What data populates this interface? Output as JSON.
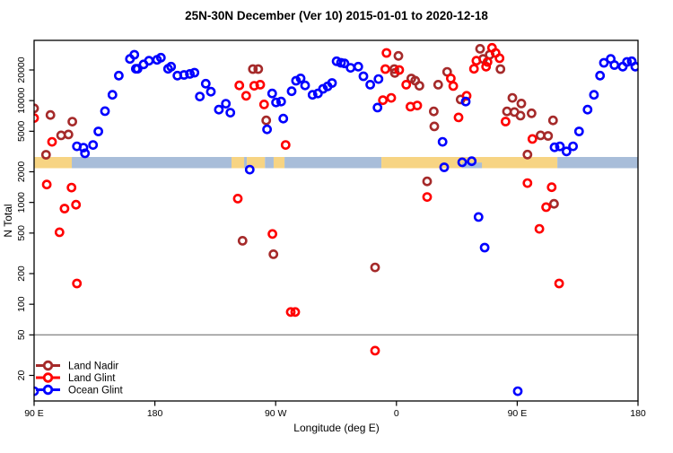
{
  "title": "25N-30N December (Ver 10)   2015-01-01 to 2020-12-18",
  "chart_data": {
    "type": "scatter",
    "xlabel": "Longitude (deg E)",
    "ylabel": "N Total",
    "y_scale": "log10",
    "x_range_deg": [
      90,
      540
    ],
    "y_range": [
      12,
      39000
    ],
    "reference_line_y": 50,
    "x_axis": {
      "ticks": [
        {
          "lon": 90,
          "label": "90 E"
        },
        {
          "lon": 180,
          "label": "180"
        },
        {
          "lon": 270,
          "label": "90 W"
        },
        {
          "lon": 360,
          "label": "0"
        },
        {
          "lon": 450,
          "label": "90 E"
        },
        {
          "lon": 540,
          "label": "180"
        }
      ]
    },
    "y_axis": {
      "ticks": [
        20,
        50,
        100,
        200,
        500,
        1000,
        2000,
        5000,
        10000,
        20000
      ]
    },
    "map_strip": {
      "description": "land/ocean band drawn across plot at N ~2200-2800",
      "band_center_n": 2450,
      "land_color": "#F7D483",
      "ocean_color": "#A8BDD9",
      "segments": [
        {
          "from": 90,
          "to": 118.1,
          "type": "land"
        },
        {
          "from": 118.1,
          "to": 237.1,
          "type": "ocean"
        },
        {
          "from": 237.1,
          "to": 246.5,
          "type": "land"
        },
        {
          "from": 246.5,
          "to": 248.5,
          "type": "ocean"
        },
        {
          "from": 248.5,
          "to": 262.0,
          "type": "land"
        },
        {
          "from": 262.0,
          "to": 268.5,
          "type": "ocean"
        },
        {
          "from": 268.5,
          "to": 276.6,
          "type": "land"
        },
        {
          "from": 276.6,
          "to": 348.8,
          "type": "ocean"
        },
        {
          "from": 348.8,
          "to": 479.9,
          "type": "land"
        },
        {
          "from": 479.9,
          "to": 540.0,
          "type": "ocean"
        }
      ],
      "gulf_overlay": {
        "from": 409,
        "to": 423.7,
        "type": "ocean"
      }
    },
    "series": [
      {
        "name": "Land Nadir",
        "color": "#A52A2A",
        "points": [
          [
            90,
            8400
          ],
          [
            102.2,
            7220
          ],
          [
            118.5,
            6220
          ],
          [
            110.1,
            4560
          ],
          [
            115.6,
            4650
          ],
          [
            98.9,
            2940
          ],
          [
            253,
            20400
          ],
          [
            257,
            20400
          ],
          [
            263,
            6400
          ],
          [
            245.3,
            420
          ],
          [
            268.3,
            310
          ],
          [
            361.5,
            27500
          ],
          [
            358.4,
            20400
          ],
          [
            358.8,
            18700
          ],
          [
            371.1,
            16500
          ],
          [
            374,
            15700
          ],
          [
            377.1,
            14000
          ],
          [
            391.1,
            14350
          ],
          [
            387.8,
            7830
          ],
          [
            388.2,
            5580
          ],
          [
            382.9,
            1610
          ],
          [
            344.1,
            230
          ],
          [
            422.3,
            32300
          ],
          [
            429.5,
            28250
          ],
          [
            424.6,
            25650
          ],
          [
            437.5,
            20400
          ],
          [
            397.8,
            19150
          ],
          [
            407.8,
            10250
          ],
          [
            446.4,
            10650
          ],
          [
            453.1,
            9370
          ],
          [
            442.4,
            7830
          ],
          [
            447.9,
            7730
          ],
          [
            452.4,
            7120
          ],
          [
            460.7,
            7500
          ],
          [
            467.4,
            4560
          ],
          [
            457.6,
            2950
          ],
          [
            476.7,
            6400
          ],
          [
            473,
            4500
          ],
          [
            477.4,
            970
          ]
        ]
      },
      {
        "name": "Land Glint",
        "color": "#FF0000",
        "points": [
          [
            90,
            6740
          ],
          [
            103.4,
            3940
          ],
          [
            99.4,
            1500
          ],
          [
            117.9,
            1400
          ],
          [
            112.7,
            870
          ],
          [
            121.2,
            950
          ],
          [
            108.9,
            510
          ],
          [
            121.9,
            160
          ],
          [
            241.8,
            1090
          ],
          [
            242.9,
            14100
          ],
          [
            254,
            14000
          ],
          [
            258.5,
            14350
          ],
          [
            248,
            11150
          ],
          [
            261.4,
            9180
          ],
          [
            277.4,
            3670
          ],
          [
            267.6,
            490
          ],
          [
            281.2,
            84
          ],
          [
            284.6,
            84
          ],
          [
            352.6,
            29400
          ],
          [
            351.7,
            20400
          ],
          [
            362.1,
            20000
          ],
          [
            367.3,
            14350
          ],
          [
            356.1,
            10650
          ],
          [
            349.9,
            10100
          ],
          [
            370.4,
            8720
          ],
          [
            375.5,
            8950
          ],
          [
            382.9,
            1130
          ],
          [
            344.1,
            35
          ],
          [
            431.2,
            33000
          ],
          [
            433.9,
            29400
          ],
          [
            436.8,
            26100
          ],
          [
            419.6,
            24650
          ],
          [
            427.9,
            23950
          ],
          [
            417.8,
            20550
          ],
          [
            426.8,
            21550
          ],
          [
            400.5,
            16540
          ],
          [
            402.3,
            13900
          ],
          [
            412.3,
            11150
          ],
          [
            406.3,
            6840
          ],
          [
            441.3,
            6230
          ],
          [
            461.3,
            4200
          ],
          [
            457.6,
            1550
          ],
          [
            475.7,
            1410
          ],
          [
            471.5,
            900
          ],
          [
            466.5,
            550
          ],
          [
            481.2,
            160
          ]
        ]
      },
      {
        "name": "Ocean Glint",
        "color": "#0000FF",
        "points": [
          [
            121.9,
            3560
          ],
          [
            126.8,
            3450
          ],
          [
            127.9,
            3040
          ],
          [
            133.9,
            3670
          ],
          [
            137.9,
            4980
          ],
          [
            142.8,
            7880
          ],
          [
            148.4,
            11400
          ],
          [
            153.1,
            17600
          ],
          [
            161.4,
            25650
          ],
          [
            164.7,
            28250
          ],
          [
            165.8,
            20550
          ],
          [
            167.1,
            20550
          ],
          [
            171.6,
            22700
          ],
          [
            175.6,
            24650
          ],
          [
            181.6,
            25150
          ],
          [
            184.5,
            26400
          ],
          [
            189.8,
            20550
          ],
          [
            192.1,
            21550
          ],
          [
            196.8,
            17600
          ],
          [
            201.7,
            17900
          ],
          [
            206.1,
            18300
          ],
          [
            209.5,
            18800
          ],
          [
            217.9,
            14670
          ],
          [
            213.5,
            10960
          ],
          [
            221.7,
            12230
          ],
          [
            227.7,
            8150
          ],
          [
            232.9,
            9320
          ],
          [
            236.2,
            7610
          ],
          [
            250.7,
            2100
          ],
          [
            263.6,
            5220
          ],
          [
            267.4,
            11750
          ],
          [
            270.3,
            9590
          ],
          [
            274.1,
            9800
          ],
          [
            275.7,
            6660
          ],
          [
            281.9,
            12360
          ],
          [
            285.2,
            15690
          ],
          [
            288.6,
            16540
          ],
          [
            291.9,
            14100
          ],
          [
            297.5,
            11400
          ],
          [
            301.5,
            11750
          ],
          [
            305.3,
            13070
          ],
          [
            308.7,
            13800
          ],
          [
            312,
            14900
          ],
          [
            315.4,
            24350
          ],
          [
            318.7,
            23500
          ],
          [
            321.3,
            23200
          ],
          [
            325.8,
            21000
          ],
          [
            331.6,
            21550
          ],
          [
            335.4,
            17350
          ],
          [
            340.5,
            14350
          ],
          [
            346.6,
            16300
          ],
          [
            345.9,
            8550
          ],
          [
            394.4,
            3940
          ],
          [
            395.6,
            2215
          ],
          [
            411.6,
            9800
          ],
          [
            409,
            2480
          ],
          [
            416.1,
            2540
          ],
          [
            421.2,
            720
          ],
          [
            425.7,
            360
          ],
          [
            450.4,
            14
          ],
          [
            90,
            14
          ],
          [
            477.8,
            3480
          ],
          [
            481.8,
            3550
          ],
          [
            486.7,
            3170
          ],
          [
            491.6,
            3560
          ],
          [
            496.1,
            4980
          ],
          [
            502.4,
            8150
          ],
          [
            507.2,
            11400
          ],
          [
            511.7,
            17600
          ],
          [
            514.6,
            23500
          ],
          [
            519.7,
            25650
          ],
          [
            522.4,
            22350
          ],
          [
            528.6,
            21550
          ],
          [
            531.8,
            24000
          ],
          [
            535.3,
            24350
          ],
          [
            538,
            21550
          ]
        ]
      }
    ],
    "legend_position": "bottom-left",
    "grid": false
  },
  "legend": {
    "items": [
      {
        "label": "Land Nadir"
      },
      {
        "label": "Land Glint"
      },
      {
        "label": "Ocean Glint"
      }
    ]
  },
  "colors": {
    "plot_border": "#000000",
    "reference_line": "#8C8C8C",
    "background": "#FFFFFF"
  }
}
